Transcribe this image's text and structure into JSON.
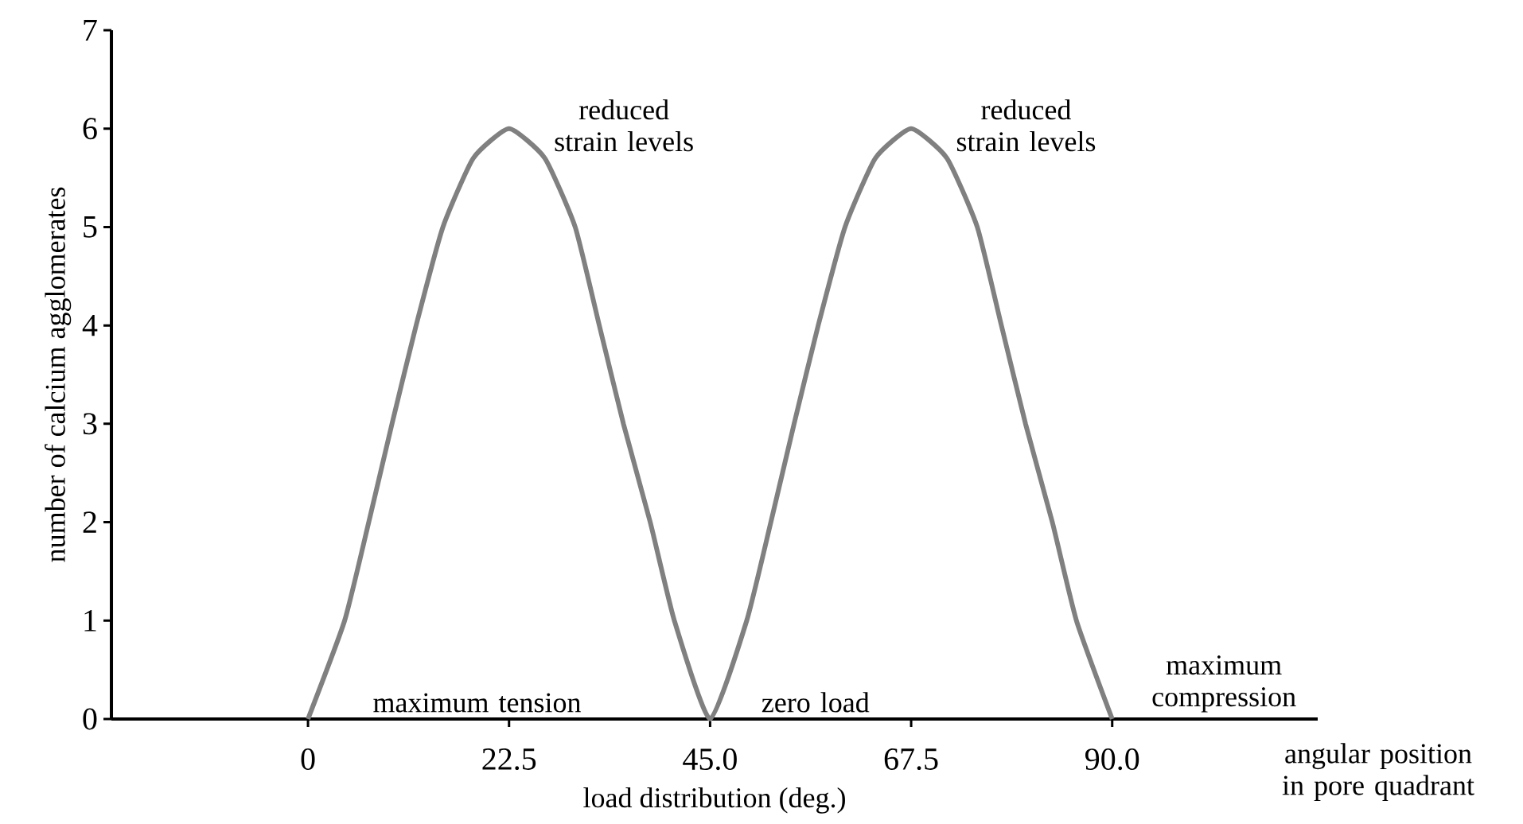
{
  "chart_data": {
    "type": "line",
    "xlabel": "load distribution (deg.)",
    "ylabel": "number of calcium agglomerates",
    "xlim": [
      -22,
      113
    ],
    "ylim": [
      0,
      7
    ],
    "xticks": [
      0,
      22.5,
      {
        "value": 45,
        "label": "45.0"
      },
      67.5,
      {
        "value": 90,
        "label": "90.0"
      }
    ],
    "yticks": [
      0,
      1,
      2,
      3,
      4,
      5,
      6,
      7
    ],
    "series": [
      {
        "color": "#808080",
        "x": [
          0,
          4.1,
          6.8,
          9.4,
          12.1,
          15.1,
          18.5,
          22.5,
          26.5,
          29.9,
          32.6,
          35.3,
          38.3,
          41,
          45,
          49.1,
          51.8,
          54.4,
          57.1,
          60.1,
          63.5,
          67.5,
          71.5,
          74.9,
          77.6,
          80.3,
          83.3,
          86,
          90
        ],
        "values": [
          0,
          1,
          2,
          3,
          4,
          5,
          5.7,
          6,
          5.7,
          5,
          4,
          3,
          2,
          1,
          0,
          1,
          2,
          3,
          4,
          5,
          5.7,
          6,
          5.7,
          5,
          4,
          3,
          2,
          1,
          0
        ]
      }
    ],
    "annotations": [
      {
        "text": "reduced strain levels",
        "x": 22.5,
        "y": 6
      },
      {
        "text": "reduced strain levels",
        "x": 67.5,
        "y": 6
      },
      {
        "text": "maximum tension",
        "x": 0,
        "y": 0
      },
      {
        "text": "zero load",
        "x": 45,
        "y": 0
      },
      {
        "text": "maximum compression",
        "x": 90,
        "y": 0
      },
      "angular position in pore quadrant"
    ],
    "grid": false,
    "marker": "none",
    "line_style": "solid"
  }
}
